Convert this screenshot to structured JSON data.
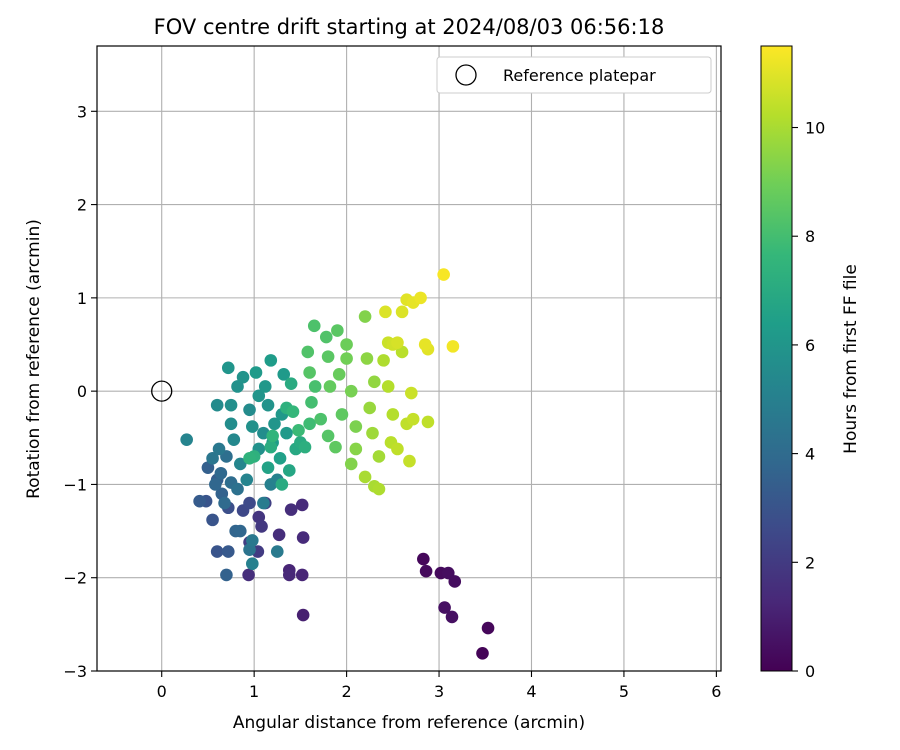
{
  "chart_data": {
    "type": "scatter",
    "title": "FOV centre drift starting at 2024/08/03 06:56:18",
    "xlabel": "Angular distance from reference (arcmin)",
    "ylabel": "Rotation from reference (arcmin)",
    "xlim": [
      -0.7,
      6.05
    ],
    "ylim": [
      -3.0,
      3.7
    ],
    "xticks": [
      0,
      1,
      2,
      3,
      4,
      5,
      6
    ],
    "yticks": [
      -3,
      -2,
      -1,
      0,
      1,
      2,
      3
    ],
    "grid": true,
    "legend": {
      "placement": "top-right",
      "entries": [
        "Reference platepar"
      ]
    },
    "reference_point": {
      "x": 0.0,
      "y": 0.0,
      "marker": "open-circle",
      "label": "Reference platepar"
    },
    "colorbar": {
      "label": "Hours from first FF file",
      "colormap": "viridis",
      "range": [
        0,
        11.5
      ],
      "ticks": [
        0,
        2,
        4,
        6,
        8,
        10
      ]
    },
    "colormap_stops": [
      "#440154",
      "#482878",
      "#3e4989",
      "#31688e",
      "#26828e",
      "#1f9e89",
      "#35b779",
      "#6ece58",
      "#b5de2b",
      "#fde725"
    ],
    "x_label_mode": "integer",
    "y_label_mode": "minus",
    "points": [
      {
        "x": 2.83,
        "y": -1.8,
        "h": 0.2
      },
      {
        "x": 2.86,
        "y": -1.93,
        "h": 0.3
      },
      {
        "x": 3.02,
        "y": -1.95,
        "h": 0.3
      },
      {
        "x": 3.1,
        "y": -1.95,
        "h": 0.4
      },
      {
        "x": 3.17,
        "y": -2.04,
        "h": 0.4
      },
      {
        "x": 3.06,
        "y": -2.32,
        "h": 0.5
      },
      {
        "x": 3.14,
        "y": -2.42,
        "h": 0.5
      },
      {
        "x": 3.53,
        "y": -2.54,
        "h": 0.2
      },
      {
        "x": 3.47,
        "y": -2.81,
        "h": 0.1
      },
      {
        "x": 1.53,
        "y": -2.4,
        "h": 1.0
      },
      {
        "x": 1.38,
        "y": -1.92,
        "h": 1.2
      },
      {
        "x": 1.38,
        "y": -1.97,
        "h": 1.3
      },
      {
        "x": 1.52,
        "y": -1.97,
        "h": 1.2
      },
      {
        "x": 0.94,
        "y": -1.97,
        "h": 1.5
      },
      {
        "x": 1.27,
        "y": -1.54,
        "h": 1.5
      },
      {
        "x": 1.53,
        "y": -1.57,
        "h": 1.4
      },
      {
        "x": 1.4,
        "y": -1.27,
        "h": 1.5
      },
      {
        "x": 1.52,
        "y": -1.22,
        "h": 1.4
      },
      {
        "x": 1.05,
        "y": -1.35,
        "h": 1.8
      },
      {
        "x": 1.08,
        "y": -1.45,
        "h": 1.9
      },
      {
        "x": 1.04,
        "y": -1.72,
        "h": 2.0
      },
      {
        "x": 0.95,
        "y": -1.62,
        "h": 2.1
      },
      {
        "x": 1.12,
        "y": -1.2,
        "h": 2.2
      },
      {
        "x": 0.88,
        "y": -1.28,
        "h": 2.5
      },
      {
        "x": 0.95,
        "y": -1.2,
        "h": 2.6
      },
      {
        "x": 0.72,
        "y": -1.25,
        "h": 2.8
      },
      {
        "x": 0.55,
        "y": -1.38,
        "h": 3.0
      },
      {
        "x": 0.48,
        "y": -1.18,
        "h": 3.0
      },
      {
        "x": 0.41,
        "y": -1.18,
        "h": 3.3
      },
      {
        "x": 0.6,
        "y": -1.72,
        "h": 3.0
      },
      {
        "x": 0.72,
        "y": -1.72,
        "h": 3.2
      },
      {
        "x": 0.7,
        "y": -1.97,
        "h": 3.6
      },
      {
        "x": 0.85,
        "y": -1.5,
        "h": 3.8
      },
      {
        "x": 0.8,
        "y": -1.5,
        "h": 3.7
      },
      {
        "x": 0.65,
        "y": -1.1,
        "h": 3.6
      },
      {
        "x": 0.6,
        "y": -0.95,
        "h": 3.4
      },
      {
        "x": 0.5,
        "y": -0.82,
        "h": 3.5
      },
      {
        "x": 0.64,
        "y": -0.88,
        "h": 3.9
      },
      {
        "x": 0.58,
        "y": -1.0,
        "h": 3.8
      },
      {
        "x": 0.75,
        "y": -0.98,
        "h": 4.1
      },
      {
        "x": 0.82,
        "y": -1.05,
        "h": 4.3
      },
      {
        "x": 0.68,
        "y": -1.2,
        "h": 4.0
      },
      {
        "x": 0.55,
        "y": -0.72,
        "h": 4.5
      },
      {
        "x": 0.62,
        "y": -0.62,
        "h": 4.6
      },
      {
        "x": 0.7,
        "y": -0.7,
        "h": 4.2
      },
      {
        "x": 0.95,
        "y": -1.7,
        "h": 4.4
      },
      {
        "x": 0.98,
        "y": -1.6,
        "h": 4.6
      },
      {
        "x": 0.98,
        "y": -1.85,
        "h": 5.0
      },
      {
        "x": 1.25,
        "y": -1.72,
        "h": 4.7
      },
      {
        "x": 1.1,
        "y": -1.2,
        "h": 4.8
      },
      {
        "x": 1.18,
        "y": -1.0,
        "h": 5.0
      },
      {
        "x": 1.25,
        "y": -0.95,
        "h": 5.1
      },
      {
        "x": 0.92,
        "y": -0.95,
        "h": 5.2
      },
      {
        "x": 0.85,
        "y": -0.78,
        "h": 5.3
      },
      {
        "x": 0.78,
        "y": -0.52,
        "h": 5.4
      },
      {
        "x": 0.27,
        "y": -0.52,
        "h": 5.2
      },
      {
        "x": 0.6,
        "y": -0.15,
        "h": 5.5
      },
      {
        "x": 0.75,
        "y": -0.35,
        "h": 5.6
      },
      {
        "x": 0.75,
        "y": -0.15,
        "h": 5.7
      },
      {
        "x": 0.82,
        "y": 0.05,
        "h": 5.8
      },
      {
        "x": 0.88,
        "y": 0.15,
        "h": 5.9
      },
      {
        "x": 0.72,
        "y": 0.25,
        "h": 6.0
      },
      {
        "x": 0.95,
        "y": -0.2,
        "h": 5.5
      },
      {
        "x": 0.98,
        "y": -0.38,
        "h": 5.8
      },
      {
        "x": 1.05,
        "y": -0.05,
        "h": 6.0
      },
      {
        "x": 1.12,
        "y": 0.05,
        "h": 6.1
      },
      {
        "x": 1.02,
        "y": 0.2,
        "h": 6.2
      },
      {
        "x": 1.18,
        "y": 0.33,
        "h": 6.3
      },
      {
        "x": 1.32,
        "y": 0.18,
        "h": 6.2
      },
      {
        "x": 1.15,
        "y": -0.15,
        "h": 5.9
      },
      {
        "x": 1.22,
        "y": -0.35,
        "h": 6.0
      },
      {
        "x": 1.3,
        "y": -0.25,
        "h": 6.1
      },
      {
        "x": 1.35,
        "y": -0.45,
        "h": 6.2
      },
      {
        "x": 1.1,
        "y": -0.45,
        "h": 5.6
      },
      {
        "x": 1.05,
        "y": -0.62,
        "h": 5.8
      },
      {
        "x": 1.2,
        "y": -0.55,
        "h": 6.3
      },
      {
        "x": 1.28,
        "y": -0.72,
        "h": 6.5
      },
      {
        "x": 1.15,
        "y": -0.82,
        "h": 6.6
      },
      {
        "x": 1.38,
        "y": -0.85,
        "h": 6.8
      },
      {
        "x": 1.45,
        "y": -0.62,
        "h": 6.9
      },
      {
        "x": 1.5,
        "y": -0.55,
        "h": 7.0
      },
      {
        "x": 1.55,
        "y": -0.6,
        "h": 7.2
      },
      {
        "x": 1.3,
        "y": -1.0,
        "h": 7.0
      },
      {
        "x": 1.18,
        "y": -0.6,
        "h": 7.1
      },
      {
        "x": 1.0,
        "y": -0.7,
        "h": 7.3
      },
      {
        "x": 0.95,
        "y": -0.72,
        "h": 7.4
      },
      {
        "x": 1.2,
        "y": -0.48,
        "h": 7.5
      },
      {
        "x": 1.35,
        "y": -0.18,
        "h": 7.3
      },
      {
        "x": 1.4,
        "y": 0.08,
        "h": 7.0
      },
      {
        "x": 1.42,
        "y": -0.22,
        "h": 7.6
      },
      {
        "x": 1.48,
        "y": -0.42,
        "h": 7.8
      },
      {
        "x": 1.6,
        "y": -0.35,
        "h": 7.9
      },
      {
        "x": 1.62,
        "y": -0.12,
        "h": 8.0
      },
      {
        "x": 1.66,
        "y": 0.05,
        "h": 8.1
      },
      {
        "x": 1.65,
        "y": 0.7,
        "h": 8.2
      },
      {
        "x": 1.58,
        "y": 0.42,
        "h": 8.3
      },
      {
        "x": 1.6,
        "y": 0.2,
        "h": 8.4
      },
      {
        "x": 1.78,
        "y": 0.58,
        "h": 8.3
      },
      {
        "x": 1.8,
        "y": 0.37,
        "h": 8.5
      },
      {
        "x": 1.72,
        "y": -0.3,
        "h": 8.2
      },
      {
        "x": 1.8,
        "y": -0.48,
        "h": 8.4
      },
      {
        "x": 1.88,
        "y": -0.6,
        "h": 8.6
      },
      {
        "x": 1.95,
        "y": -0.25,
        "h": 8.6
      },
      {
        "x": 1.82,
        "y": 0.05,
        "h": 8.7
      },
      {
        "x": 1.92,
        "y": 0.18,
        "h": 8.8
      },
      {
        "x": 1.9,
        "y": 0.65,
        "h": 8.5
      },
      {
        "x": 2.0,
        "y": 0.5,
        "h": 8.9
      },
      {
        "x": 2.0,
        "y": 0.35,
        "h": 9.0
      },
      {
        "x": 2.05,
        "y": 0.0,
        "h": 9.1
      },
      {
        "x": 2.1,
        "y": -0.38,
        "h": 9.2
      },
      {
        "x": 2.05,
        "y": -0.78,
        "h": 9.3
      },
      {
        "x": 2.1,
        "y": -0.62,
        "h": 9.4
      },
      {
        "x": 2.2,
        "y": 0.8,
        "h": 9.3
      },
      {
        "x": 2.22,
        "y": 0.35,
        "h": 9.5
      },
      {
        "x": 2.3,
        "y": 0.1,
        "h": 9.6
      },
      {
        "x": 2.25,
        "y": -0.18,
        "h": 9.7
      },
      {
        "x": 2.28,
        "y": -0.45,
        "h": 9.8
      },
      {
        "x": 2.35,
        "y": -0.7,
        "h": 9.9
      },
      {
        "x": 2.2,
        "y": -0.92,
        "h": 10.0
      },
      {
        "x": 2.35,
        "y": -1.05,
        "h": 10.1
      },
      {
        "x": 2.3,
        "y": -1.02,
        "h": 10.0
      },
      {
        "x": 2.4,
        "y": 0.33,
        "h": 10.1
      },
      {
        "x": 2.45,
        "y": 0.05,
        "h": 10.2
      },
      {
        "x": 2.5,
        "y": -0.25,
        "h": 10.2
      },
      {
        "x": 2.48,
        "y": -0.55,
        "h": 10.3
      },
      {
        "x": 2.6,
        "y": 0.42,
        "h": 10.3
      },
      {
        "x": 2.65,
        "y": -0.35,
        "h": 10.4
      },
      {
        "x": 2.55,
        "y": -0.62,
        "h": 10.4
      },
      {
        "x": 2.68,
        "y": -0.75,
        "h": 10.5
      },
      {
        "x": 2.72,
        "y": -0.3,
        "h": 10.5
      },
      {
        "x": 2.7,
        "y": -0.02,
        "h": 10.6
      },
      {
        "x": 2.88,
        "y": -0.33,
        "h": 10.4
      },
      {
        "x": 2.45,
        "y": 0.52,
        "h": 10.6
      },
      {
        "x": 2.5,
        "y": 0.5,
        "h": 10.7
      },
      {
        "x": 2.55,
        "y": 0.52,
        "h": 10.8
      },
      {
        "x": 2.6,
        "y": 0.85,
        "h": 10.9
      },
      {
        "x": 2.42,
        "y": 0.85,
        "h": 10.9
      },
      {
        "x": 2.65,
        "y": 0.98,
        "h": 11.0
      },
      {
        "x": 2.72,
        "y": 0.95,
        "h": 11.1
      },
      {
        "x": 2.8,
        "y": 1.0,
        "h": 11.2
      },
      {
        "x": 2.85,
        "y": 0.5,
        "h": 11.1
      },
      {
        "x": 2.88,
        "y": 0.45,
        "h": 11.0
      },
      {
        "x": 3.15,
        "y": 0.48,
        "h": 11.3
      },
      {
        "x": 3.05,
        "y": 1.25,
        "h": 11.4
      }
    ]
  }
}
